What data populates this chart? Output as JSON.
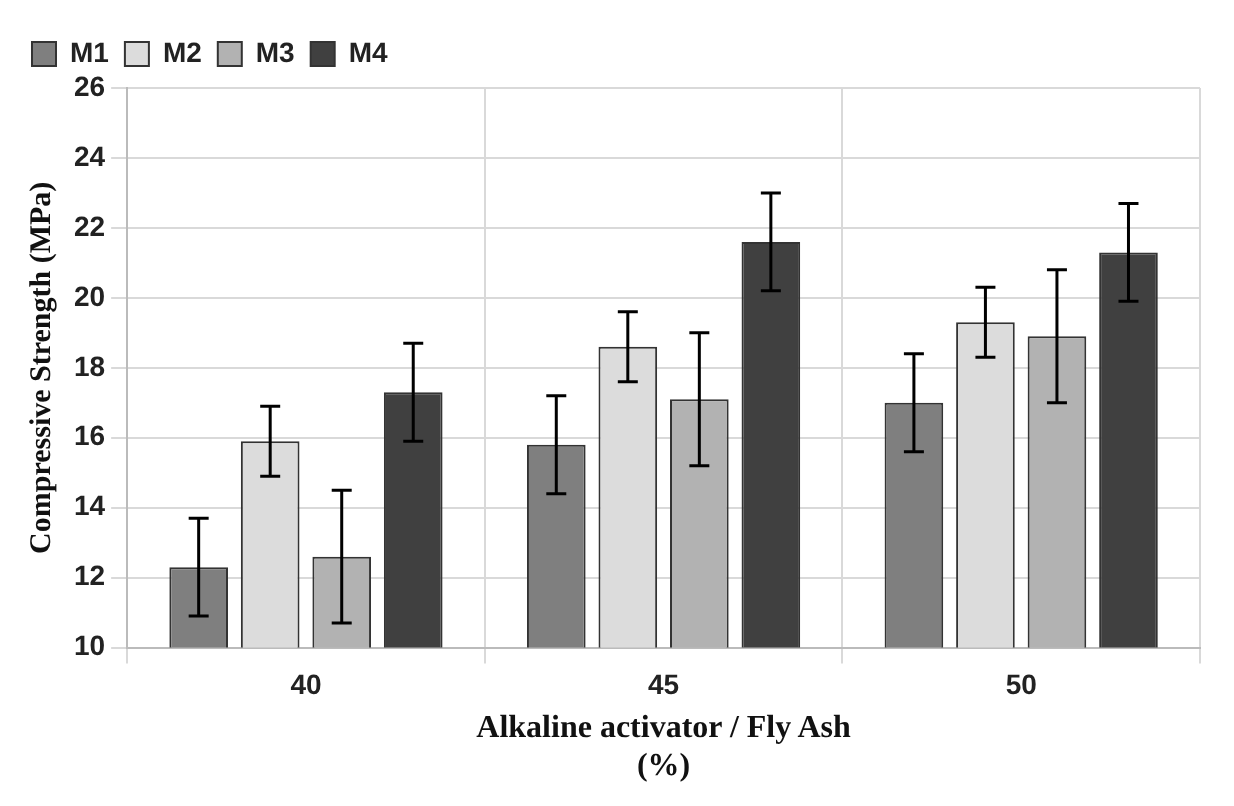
{
  "chart_data": {
    "type": "bar",
    "xlabel": "Alkaline activator / Fly Ash\n(%)",
    "ylabel": "Compressive Strength (MPa)",
    "categories": [
      "40",
      "45",
      "50"
    ],
    "series": [
      {
        "name": "M1",
        "color": "#7f7f7f",
        "values": [
          12.3,
          15.8,
          17.0
        ],
        "errors": [
          1.4,
          1.4,
          1.4
        ]
      },
      {
        "name": "M2",
        "color": "#dcdcdc",
        "values": [
          15.9,
          18.6,
          19.3
        ],
        "errors": [
          1.0,
          1.0,
          1.0
        ]
      },
      {
        "name": "M3",
        "color": "#b2b2b2",
        "values": [
          12.6,
          17.1,
          18.9
        ],
        "errors": [
          1.9,
          1.9,
          1.9
        ]
      },
      {
        "name": "M4",
        "color": "#404040",
        "values": [
          17.3,
          21.6,
          21.3
        ],
        "errors": [
          1.4,
          1.4,
          1.4
        ]
      }
    ],
    "ylim": [
      10,
      26
    ],
    "yticks": [
      10,
      12,
      14,
      16,
      18,
      20,
      22,
      24,
      26
    ],
    "grid": true,
    "legend": "top left"
  }
}
